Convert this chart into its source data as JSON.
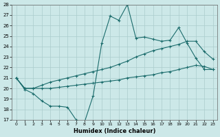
{
  "xlabel": "Humidex (Indice chaleur)",
  "bg_color": "#cce8e8",
  "grid_color": "#aacccc",
  "line_color": "#1a6b6b",
  "x": [
    0,
    1,
    2,
    3,
    4,
    5,
    6,
    7,
    8,
    9,
    10,
    11,
    12,
    13,
    14,
    15,
    16,
    17,
    18,
    19,
    20,
    21,
    22,
    23
  ],
  "y_top": [
    21.0,
    19.9,
    19.5,
    18.8,
    18.3,
    18.3,
    18.2,
    17.0,
    16.8,
    19.3,
    24.3,
    26.9,
    26.5,
    28.0,
    24.8,
    24.9,
    24.7,
    24.5,
    24.6,
    25.8,
    24.3,
    22.9,
    21.8,
    21.8
  ],
  "y_mid": [
    21.0,
    20.0,
    20.0,
    20.3,
    20.6,
    20.8,
    21.0,
    21.2,
    21.4,
    21.6,
    21.8,
    22.0,
    22.3,
    22.6,
    23.0,
    23.3,
    23.6,
    23.8,
    24.0,
    24.2,
    24.5,
    24.5,
    23.5,
    22.8
  ],
  "y_bot": [
    21.0,
    20.0,
    20.0,
    20.0,
    20.0,
    20.1,
    20.2,
    20.3,
    20.4,
    20.5,
    20.6,
    20.7,
    20.8,
    21.0,
    21.1,
    21.2,
    21.3,
    21.5,
    21.6,
    21.8,
    22.0,
    22.2,
    22.1,
    21.8
  ],
  "ylim": [
    17,
    28
  ],
  "xlim_min": -0.5,
  "xlim_max": 23.5,
  "yticks": [
    17,
    18,
    19,
    20,
    21,
    22,
    23,
    24,
    25,
    26,
    27,
    28
  ],
  "xticks": [
    0,
    1,
    2,
    3,
    4,
    5,
    6,
    7,
    8,
    9,
    10,
    11,
    12,
    13,
    14,
    15,
    16,
    17,
    18,
    19,
    20,
    21,
    22,
    23
  ]
}
